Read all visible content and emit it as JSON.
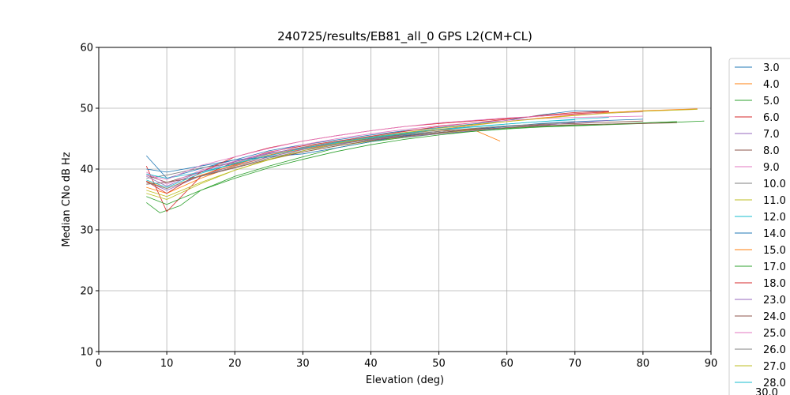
{
  "chart_data": {
    "type": "line",
    "title": "240725/results/EB81_all_0 GPS L2(CM+CL)",
    "xlabel": "Elevation (deg)",
    "ylabel": "Median CNo dB Hz",
    "xlim": [
      0,
      90
    ],
    "ylim": [
      10,
      60
    ],
    "xticks": [
      0,
      10,
      20,
      30,
      40,
      50,
      60,
      70,
      80,
      90
    ],
    "yticks": [
      10,
      20,
      30,
      40,
      50,
      60
    ],
    "grid": true,
    "legend_position": "right",
    "series": [
      {
        "name": "3.0",
        "color": "#1f77b4",
        "x": [
          7,
          10,
          15,
          20,
          25,
          30,
          35,
          40,
          45,
          50,
          55,
          60,
          65,
          70,
          75
        ],
        "y": [
          42.2,
          38.5,
          40.1,
          41.5,
          43.0,
          44.0,
          44.8,
          45.6,
          46.3,
          46.8,
          47.4,
          48.0,
          48.9,
          49.6,
          49.5
        ]
      },
      {
        "name": "4.0",
        "color": "#ff7f0e",
        "x": [
          7,
          10,
          15,
          20,
          25,
          30,
          35,
          40,
          45,
          50,
          55,
          60,
          65,
          70,
          75,
          80,
          88
        ],
        "y": [
          37.0,
          36.0,
          38.5,
          40.5,
          42.0,
          43.3,
          44.2,
          45.0,
          45.8,
          46.5,
          47.2,
          47.8,
          48.4,
          48.9,
          49.3,
          49.6,
          49.9
        ]
      },
      {
        "name": "5.0",
        "color": "#2ca02c",
        "x": [
          7,
          9,
          12,
          15,
          20,
          25,
          30,
          35,
          40,
          45,
          50,
          55,
          60,
          65,
          70,
          75,
          80,
          85,
          89
        ],
        "y": [
          34.5,
          32.8,
          34.0,
          36.5,
          38.8,
          40.5,
          42.0,
          43.5,
          44.5,
          45.2,
          45.8,
          46.2,
          46.6,
          46.9,
          47.1,
          47.3,
          47.5,
          47.7,
          47.9
        ]
      },
      {
        "name": "6.0",
        "color": "#d62728",
        "x": [
          7,
          10,
          15,
          20,
          25,
          30,
          35,
          40,
          45,
          50,
          55,
          60,
          65,
          70,
          75
        ],
        "y": [
          40.5,
          33.0,
          38.8,
          41.2,
          42.8,
          43.8,
          44.6,
          45.4,
          46.2,
          47.0,
          47.6,
          48.2,
          48.8,
          49.3,
          49.5
        ]
      },
      {
        "name": "7.0",
        "color": "#9467bd",
        "x": [
          7,
          10,
          15,
          20,
          25,
          30,
          35,
          40,
          45,
          50,
          55,
          60
        ],
        "y": [
          38.0,
          36.5,
          38.9,
          40.6,
          42.0,
          43.2,
          44.1,
          44.8,
          45.5,
          46.0,
          46.4,
          46.8
        ]
      },
      {
        "name": "8.0",
        "color": "#8c564b",
        "x": [
          7,
          10,
          15,
          20,
          25,
          30,
          35,
          40,
          45,
          50,
          55,
          60,
          65,
          70,
          75,
          80
        ],
        "y": [
          39.0,
          37.8,
          39.5,
          40.8,
          42.2,
          43.5,
          44.3,
          45.0,
          45.7,
          46.2,
          46.6,
          47.0,
          47.3,
          47.5,
          47.7,
          47.9
        ]
      },
      {
        "name": "9.0",
        "color": "#e377c2",
        "x": [
          7,
          10,
          15,
          20,
          25,
          30,
          35,
          40,
          45,
          50,
          55,
          60,
          65,
          70,
          75,
          80
        ],
        "y": [
          39.5,
          37.5,
          39.8,
          41.3,
          42.7,
          44.0,
          45.0,
          45.8,
          46.5,
          47.1,
          47.6,
          48.0,
          48.3,
          48.5,
          48.6,
          48.7
        ]
      },
      {
        "name": "10.0",
        "color": "#7f7f7f",
        "x": [
          7,
          10,
          15,
          20,
          25,
          30,
          35,
          40,
          45,
          50,
          55
        ],
        "y": [
          38.5,
          39.0,
          40.2,
          41.0,
          42.5,
          43.6,
          44.5,
          45.3,
          46.0,
          46.5,
          47.0
        ]
      },
      {
        "name": "11.0",
        "color": "#bcbd22",
        "x": [
          7,
          10,
          15,
          20,
          25,
          30,
          35,
          40,
          45,
          50,
          55,
          60,
          65,
          70
        ],
        "y": [
          36.5,
          35.5,
          37.8,
          39.8,
          41.5,
          42.8,
          43.8,
          44.6,
          45.3,
          45.9,
          46.4,
          46.8,
          47.2,
          47.6
        ]
      },
      {
        "name": "12.0",
        "color": "#17becf",
        "x": [
          7,
          10,
          15,
          20,
          25,
          30,
          35,
          40,
          45,
          50,
          55,
          60,
          65,
          70,
          75
        ],
        "y": [
          39.2,
          38.5,
          39.5,
          40.9,
          42.3,
          43.4,
          44.3,
          45.1,
          45.8,
          46.4,
          46.9,
          47.4,
          47.8,
          48.2,
          48.5
        ]
      },
      {
        "name": "14.0",
        "color": "#1f77b4",
        "x": [
          7,
          10,
          15,
          20,
          25,
          30,
          35,
          40,
          45,
          50,
          55,
          60,
          65,
          70,
          75,
          80
        ],
        "y": [
          40.0,
          39.5,
          40.5,
          41.5,
          42.0,
          42.5,
          43.5,
          44.5,
          45.5,
          46.0,
          46.5,
          47.0,
          47.5,
          47.8,
          48.0,
          48.2
        ]
      },
      {
        "name": "15.0",
        "color": "#ff7f0e",
        "x": [
          7,
          10,
          15,
          20,
          25,
          30,
          35,
          40,
          45,
          50,
          55,
          59
        ],
        "y": [
          38.0,
          36.8,
          39.0,
          40.7,
          42.3,
          43.5,
          44.4,
          45.2,
          45.9,
          46.4,
          46.5,
          44.6
        ]
      },
      {
        "name": "17.0",
        "color": "#2ca02c",
        "x": [
          7,
          10,
          15,
          20,
          25,
          30,
          35,
          40,
          45,
          50,
          55,
          60,
          65,
          70,
          75,
          80,
          85
        ],
        "y": [
          35.5,
          34.2,
          36.5,
          38.5,
          40.2,
          41.6,
          42.9,
          44.0,
          44.9,
          45.6,
          46.2,
          46.7,
          47.0,
          47.2,
          47.4,
          47.6,
          47.8
        ]
      },
      {
        "name": "18.0",
        "color": "#d62728",
        "x": [
          7,
          10,
          15,
          20,
          25,
          30,
          35,
          40,
          45,
          50,
          55,
          60,
          65,
          70,
          75
        ],
        "y": [
          38.0,
          36.0,
          39.5,
          42.0,
          43.5,
          44.6,
          45.5,
          46.3,
          47.0,
          47.5,
          47.9,
          48.3,
          48.7,
          49.1,
          49.4
        ]
      },
      {
        "name": "23.0",
        "color": "#9467bd",
        "x": [
          7,
          10,
          15,
          20,
          25,
          30,
          35,
          40,
          45,
          50,
          55,
          60,
          65,
          70,
          75
        ],
        "y": [
          38.8,
          37.2,
          39.6,
          41.2,
          42.6,
          43.5,
          44.2,
          44.8,
          45.3,
          45.8,
          46.3,
          46.8,
          47.2,
          47.6,
          48.0
        ]
      },
      {
        "name": "24.0",
        "color": "#8c564b",
        "x": [
          7,
          10,
          15,
          20,
          25,
          30,
          35,
          40,
          45,
          50,
          55,
          60,
          65,
          70,
          75,
          80,
          85
        ],
        "y": [
          37.5,
          37.8,
          38.8,
          40.2,
          41.6,
          42.8,
          43.8,
          44.7,
          45.4,
          46.0,
          46.5,
          46.8,
          47.1,
          47.3,
          47.4,
          47.5,
          47.6
        ]
      },
      {
        "name": "25.0",
        "color": "#e377c2",
        "x": [
          7,
          10,
          15,
          20,
          25,
          30,
          35,
          40,
          45,
          50,
          55,
          60,
          65,
          70,
          75,
          80
        ],
        "y": [
          39.0,
          38.3,
          40.6,
          42.0,
          43.4,
          44.6,
          45.5,
          46.3,
          47.0,
          47.6,
          48.0,
          48.4,
          48.7,
          49.0,
          49.2,
          49.4
        ]
      },
      {
        "name": "26.0",
        "color": "#7f7f7f",
        "x": [
          7,
          10,
          15,
          20,
          25,
          30,
          35,
          40,
          45,
          50,
          55,
          60,
          65,
          70
        ],
        "y": [
          37.8,
          36.8,
          38.9,
          40.3,
          41.8,
          43.0,
          44.0,
          44.9,
          45.6,
          46.2,
          46.7,
          47.1,
          47.4,
          47.7
        ]
      },
      {
        "name": "27.0",
        "color": "#bcbd22",
        "x": [
          7,
          10,
          15,
          20,
          25,
          30,
          35,
          40,
          45,
          50,
          55,
          60,
          65,
          70,
          75,
          80,
          88
        ],
        "y": [
          36.0,
          35.0,
          37.6,
          39.8,
          41.6,
          43.0,
          44.2,
          45.2,
          46.0,
          46.7,
          47.3,
          47.8,
          48.3,
          48.8,
          49.2,
          49.5,
          49.8
        ]
      },
      {
        "name": "28.0",
        "color": "#17becf",
        "x": [
          7,
          10,
          15,
          20,
          25,
          30,
          35,
          40,
          45,
          50,
          55,
          60,
          65,
          70
        ],
        "y": [
          38.2,
          37.0,
          39.3,
          40.9,
          42.2,
          43.4,
          44.4,
          45.2,
          45.9,
          46.5,
          47.0,
          47.4,
          47.8,
          48.1
        ]
      }
    ],
    "legend_overflow_label": "30.0"
  }
}
